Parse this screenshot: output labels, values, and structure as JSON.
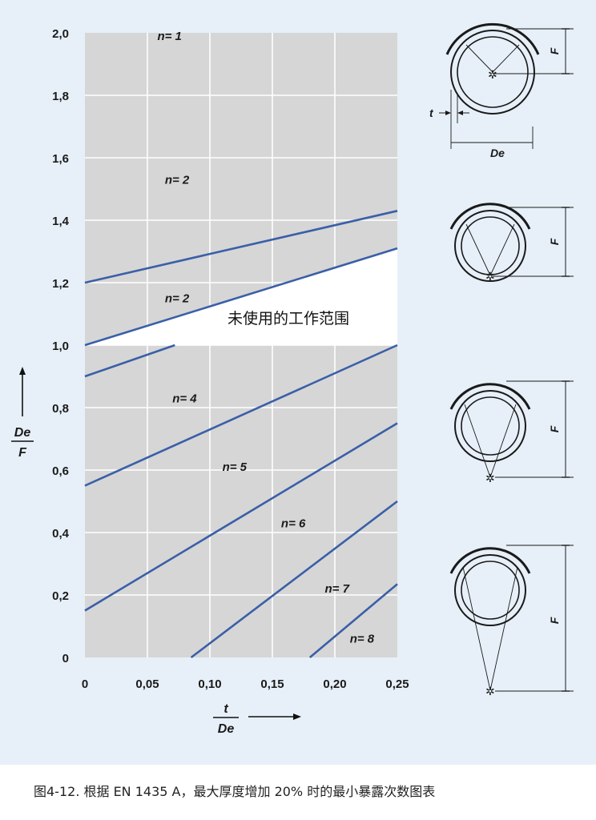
{
  "chart_data": {
    "type": "line",
    "xlabel": {
      "numerator": "t",
      "denominator": "De"
    },
    "ylabel": {
      "numerator": "De",
      "denominator": "F"
    },
    "x_ticks": [
      "0",
      "0,05",
      "0,10",
      "0,15",
      "0,20",
      "0,25"
    ],
    "y_ticks": [
      "0",
      "0,2",
      "0,4",
      "0,6",
      "0,8",
      "1,0",
      "1,2",
      "1,4",
      "1,6",
      "1,8",
      "2,0"
    ],
    "xlim": [
      0,
      0.25
    ],
    "ylim": [
      0,
      2.0
    ],
    "grid": true,
    "series": [
      {
        "points": [
          [
            0,
            1.2
          ],
          [
            0.25,
            1.43
          ]
        ]
      },
      {
        "points": [
          [
            0,
            1.0
          ],
          [
            0.25,
            1.31
          ]
        ]
      },
      {
        "points": [
          [
            0,
            0.9
          ],
          [
            0.072,
            1.0
          ]
        ]
      },
      {
        "points": [
          [
            0,
            0.55
          ],
          [
            0.25,
            1.0
          ]
        ]
      },
      {
        "points": [
          [
            0,
            0.15
          ],
          [
            0.25,
            0.75
          ]
        ]
      },
      {
        "points": [
          [
            0.085,
            0
          ],
          [
            0.25,
            0.5
          ]
        ]
      },
      {
        "points": [
          [
            0.18,
            0
          ],
          [
            0.25,
            0.235
          ]
        ]
      }
    ],
    "region_labels": [
      {
        "text": "n= 1",
        "x": 0.058,
        "y": 1.99
      },
      {
        "text": "n= 2",
        "x": 0.064,
        "y": 1.53
      },
      {
        "text": "n= 2",
        "x": 0.064,
        "y": 1.15
      },
      {
        "text": "n= 4",
        "x": 0.07,
        "y": 0.83
      },
      {
        "text": "n= 5",
        "x": 0.11,
        "y": 0.61
      },
      {
        "text": "n= 6",
        "x": 0.157,
        "y": 0.43
      },
      {
        "text": "n= 7",
        "x": 0.192,
        "y": 0.22
      },
      {
        "text": "n= 8",
        "x": 0.212,
        "y": 0.06
      }
    ],
    "unused_zone": {
      "label": "未使用的工作范围",
      "polygon": [
        [
          0,
          1.0
        ],
        [
          0.25,
          1.31
        ],
        [
          0.25,
          1.0
        ]
      ]
    }
  },
  "diagram": {
    "dim_F": "F",
    "dim_De": "De",
    "dim_t": "t"
  },
  "caption": "图4-12.  根据 EN 1435 A，最大厚度增加 20% 时的最小暴露次数图表",
  "colors": {
    "plot_bg": "#d6d6d6",
    "line": "#3a5fa8",
    "grid": "#ffffff",
    "panel": "#e7f0f8"
  }
}
